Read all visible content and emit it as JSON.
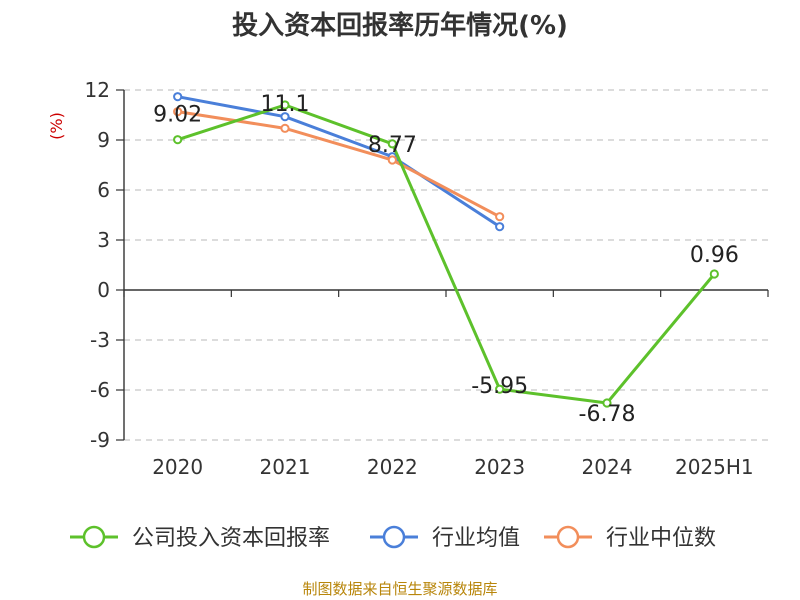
{
  "chart_data": {
    "type": "line",
    "title": "投入资本回报率历年情况(%)",
    "unit_label": "(%)",
    "categories": [
      "2020",
      "2021",
      "2022",
      "2023",
      "2024",
      "2025H1"
    ],
    "ylim": [
      -9,
      12
    ],
    "yticks": [
      12,
      9,
      6,
      3,
      0,
      -3,
      -6,
      -9
    ],
    "grid": true,
    "legend_position": "bottom",
    "series": [
      {
        "name": "公司投入资本回报率",
        "color": "#5dc12b",
        "values": [
          9.02,
          11.1,
          8.77,
          -5.95,
          -6.78,
          0.96
        ],
        "labels": [
          "9.02",
          "11.1",
          "8.77",
          "-5.95",
          "-6.78",
          "0.96"
        ]
      },
      {
        "name": "行业均值",
        "color": "#4a7fd9",
        "values": [
          11.6,
          10.4,
          8.0,
          3.8,
          null,
          null
        ]
      },
      {
        "name": "行业中位数",
        "color": "#f28e5b",
        "values": [
          10.7,
          9.7,
          7.8,
          4.4,
          null,
          null
        ]
      }
    ]
  },
  "source": "制图数据来自恒生聚源数据库"
}
